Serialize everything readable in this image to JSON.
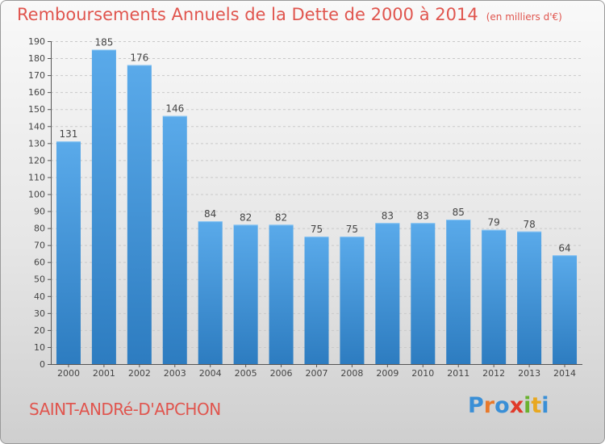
{
  "title": {
    "main": "Remboursements Annuels de la Dette de 2000 à 2014",
    "unit": "(en milliers d'€)"
  },
  "footer": {
    "commune": "SAINT-ANDRé-D'APCHON",
    "logo_text": "Proxiti"
  },
  "colors": {
    "title": "#e0554e",
    "bar_top": "#5aaaea",
    "bar_bottom": "#2d7cc0",
    "logo": [
      "#3a8fd6",
      "#e8792a",
      "#3a8fd6",
      "#e03a2a",
      "#6ab22f",
      "#e8a820",
      "#3a8fd6"
    ]
  },
  "chart_data": {
    "type": "bar",
    "title": "Remboursements Annuels de la Dette de 2000 à 2014",
    "ylabel": "en milliers d'€",
    "xlabel": "",
    "categories": [
      "2000",
      "2001",
      "2002",
      "2003",
      "2004",
      "2005",
      "2006",
      "2007",
      "2008",
      "2009",
      "2010",
      "2011",
      "2012",
      "2013",
      "2014"
    ],
    "values": [
      131,
      185,
      176,
      146,
      84,
      82,
      82,
      75,
      75,
      83,
      83,
      85,
      79,
      78,
      64
    ],
    "ylim": [
      0,
      190
    ],
    "yticks": [
      0,
      10,
      20,
      30,
      40,
      50,
      60,
      70,
      80,
      90,
      100,
      110,
      120,
      130,
      140,
      150,
      160,
      170,
      180,
      190
    ],
    "grid": true
  }
}
